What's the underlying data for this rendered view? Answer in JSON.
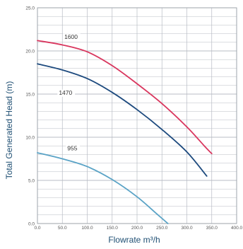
{
  "chart_data": {
    "type": "line",
    "title": "",
    "xlabel": "Flowrate m³/h",
    "ylabel": "Total Generated Head (m)",
    "xlim": [
      0,
      400
    ],
    "ylim": [
      0,
      25
    ],
    "x_ticks": [
      "0.0",
      "50.0",
      "100.0",
      "150.0",
      "200.0",
      "250.0",
      "300.0",
      "350.0",
      "400.0"
    ],
    "y_ticks": [
      "0.0",
      "5.0",
      "10.0",
      "15.0",
      "20.0",
      "25.0"
    ],
    "grid": true,
    "colors": {
      "grid": "#b8bcc4",
      "axis_title": "#1f4f73",
      "series_1600": "#d9365e",
      "series_1470": "#1d4a7e",
      "series_955": "#5aa3c6"
    },
    "series": [
      {
        "name": "1600",
        "color": "#d9365e",
        "points": [
          [
            0,
            21.2
          ],
          [
            50,
            20.7
          ],
          [
            100,
            19.9
          ],
          [
            150,
            18.3
          ],
          [
            200,
            16.2
          ],
          [
            250,
            13.9
          ],
          [
            300,
            11.2
          ],
          [
            335,
            9.0
          ],
          [
            350,
            8.1
          ]
        ]
      },
      {
        "name": "1470",
        "color": "#1d4a7e",
        "points": [
          [
            0,
            18.5
          ],
          [
            50,
            17.8
          ],
          [
            100,
            16.8
          ],
          [
            150,
            15.2
          ],
          [
            200,
            13.2
          ],
          [
            250,
            10.9
          ],
          [
            300,
            8.3
          ],
          [
            340,
            5.5
          ]
        ]
      },
      {
        "name": "955",
        "color": "#5aa3c6",
        "points": [
          [
            0,
            8.2
          ],
          [
            50,
            7.5
          ],
          [
            100,
            6.6
          ],
          [
            150,
            5.1
          ],
          [
            200,
            3.1
          ],
          [
            240,
            1.1
          ],
          [
            262,
            0.0
          ]
        ]
      }
    ],
    "series_labels": [
      {
        "text": "1600",
        "x": 54,
        "y": 21.4
      },
      {
        "text": "1470",
        "x": 43,
        "y": 14.9
      },
      {
        "text": "955",
        "x": 60,
        "y": 8.5
      }
    ]
  }
}
